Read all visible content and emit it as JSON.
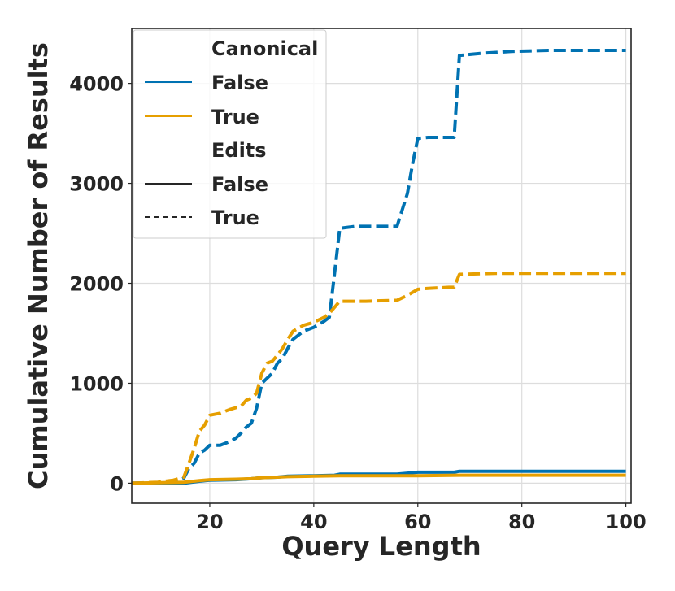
{
  "chart_data": {
    "type": "line",
    "xlabel": "Query Length",
    "ylabel": "Cumulative Number of Results",
    "xlim": [
      5,
      101
    ],
    "ylim": [
      -200,
      4550
    ],
    "xticks": [
      20,
      40,
      60,
      80,
      100
    ],
    "yticks": [
      0,
      1000,
      2000,
      3000,
      4000
    ],
    "grid": true,
    "legend": {
      "placement": "top-left",
      "groups": [
        {
          "title": "Canonical",
          "entries": [
            {
              "label": "False",
              "color": "#0072b2"
            },
            {
              "label": "True",
              "color": "#e69f00"
            }
          ]
        },
        {
          "title": "Edits",
          "entries": [
            {
              "label": "False",
              "style": "solid"
            },
            {
              "label": "True",
              "style": "dashed"
            }
          ]
        }
      ]
    },
    "series": [
      {
        "canonical": "False",
        "edits": "True",
        "color": "#0072b2",
        "dash": true,
        "x": [
          5,
          10,
          13,
          15,
          16,
          17,
          18,
          19,
          20,
          22,
          24,
          25,
          26,
          27,
          28,
          29,
          30,
          32,
          33,
          34,
          35,
          36,
          38,
          40,
          42,
          43,
          44,
          45,
          48,
          52,
          56,
          58,
          59,
          60,
          62,
          66,
          67,
          68,
          72,
          78,
          85,
          100
        ],
        "y": [
          0,
          0,
          10,
          50,
          150,
          200,
          300,
          330,
          380,
          380,
          420,
          450,
          500,
          560,
          600,
          750,
          1000,
          1100,
          1200,
          1250,
          1350,
          1440,
          1520,
          1560,
          1620,
          1660,
          2100,
          2550,
          2570,
          2570,
          2570,
          2900,
          3200,
          3450,
          3460,
          3460,
          3460,
          4280,
          4300,
          4320,
          4330,
          4330
        ]
      },
      {
        "canonical": "True",
        "edits": "True",
        "color": "#e69f00",
        "dash": true,
        "x": [
          5,
          10,
          13,
          15,
          16,
          17,
          18,
          19,
          20,
          22,
          24,
          26,
          27,
          28,
          29,
          30,
          31,
          32,
          33,
          34,
          35,
          36,
          38,
          40,
          42,
          43,
          44,
          45,
          50,
          56,
          58,
          60,
          62,
          66,
          67,
          68,
          75,
          100
        ],
        "y": [
          0,
          10,
          30,
          60,
          200,
          350,
          520,
          580,
          680,
          700,
          740,
          770,
          830,
          850,
          900,
          1100,
          1200,
          1220,
          1280,
          1350,
          1440,
          1520,
          1580,
          1610,
          1660,
          1700,
          1760,
          1820,
          1820,
          1830,
          1880,
          1940,
          1950,
          1960,
          1960,
          2090,
          2100,
          2100
        ]
      },
      {
        "canonical": "False",
        "edits": "False",
        "color": "#0072b2",
        "dash": false,
        "x": [
          5,
          15,
          18,
          20,
          25,
          28,
          30,
          33,
          35,
          40,
          44,
          45,
          50,
          56,
          58,
          60,
          62,
          67,
          68,
          75,
          100
        ],
        "y": [
          0,
          0,
          20,
          30,
          35,
          45,
          55,
          60,
          70,
          75,
          80,
          90,
          90,
          90,
          100,
          110,
          110,
          110,
          120,
          120,
          120
        ]
      },
      {
        "canonical": "True",
        "edits": "False",
        "color": "#e69f00",
        "dash": false,
        "x": [
          5,
          15,
          18,
          20,
          25,
          28,
          30,
          33,
          35,
          40,
          45,
          50,
          56,
          60,
          68,
          75,
          100
        ],
        "y": [
          0,
          10,
          25,
          35,
          40,
          45,
          55,
          60,
          65,
          70,
          75,
          75,
          75,
          75,
          80,
          80,
          80
        ]
      }
    ]
  }
}
